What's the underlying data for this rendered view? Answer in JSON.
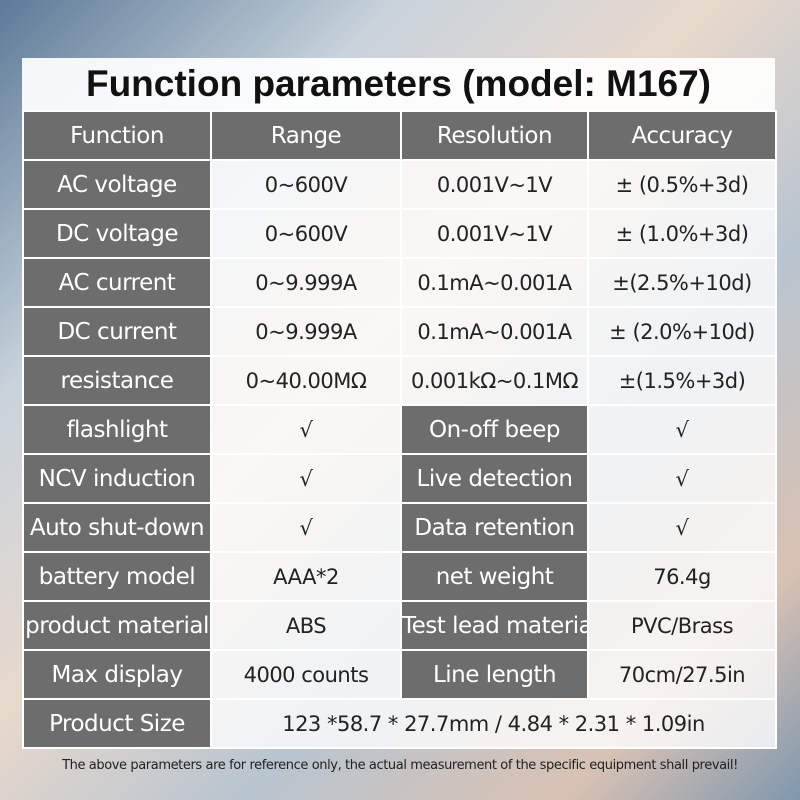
{
  "header": {
    "title": "Function parameters (model: M167)"
  },
  "table": {
    "columns": [
      "Function",
      "Range",
      "Resolution",
      "Accuracy"
    ],
    "rows": [
      [
        "AC voltage",
        "0~600V",
        "0.001V~1V",
        "± (0.5%+3d)"
      ],
      [
        "DC voltage",
        "0~600V",
        "0.001V~1V",
        "± (1.0%+3d)"
      ],
      [
        "AC current",
        "0~9.999A",
        "0.1mA~0.001A",
        "±(2.5%+10d)"
      ],
      [
        "DC current",
        "0~9.999A",
        "0.1mA~0.001A",
        "± (2.0%+10d)"
      ],
      [
        "resistance",
        "0~40.00MΩ",
        "0.001kΩ~0.1MΩ",
        "±(1.5%+3d)"
      ],
      [
        "flashlight",
        "√",
        "On-off beep",
        "√"
      ],
      [
        "NCV induction",
        "√",
        "Live detection",
        "√"
      ],
      [
        "Auto shut-down",
        "√",
        "Data retention",
        "√"
      ],
      [
        "battery model",
        "AAA*2",
        "net weight",
        "76.4g"
      ],
      [
        "product material",
        "ABS",
        "Test lead material",
        "PVC/Brass"
      ],
      [
        "Max display",
        "4000 counts",
        "Line length",
        "70cm/27.5in"
      ],
      [
        "Product Size",
        "123 *58.7 * 27.7mm  /  4.84 * 2.31 * 1.09in"
      ]
    ]
  },
  "footer": "The above parameters are for reference only, the actual measurement of the specific equipment shall prevail!"
}
